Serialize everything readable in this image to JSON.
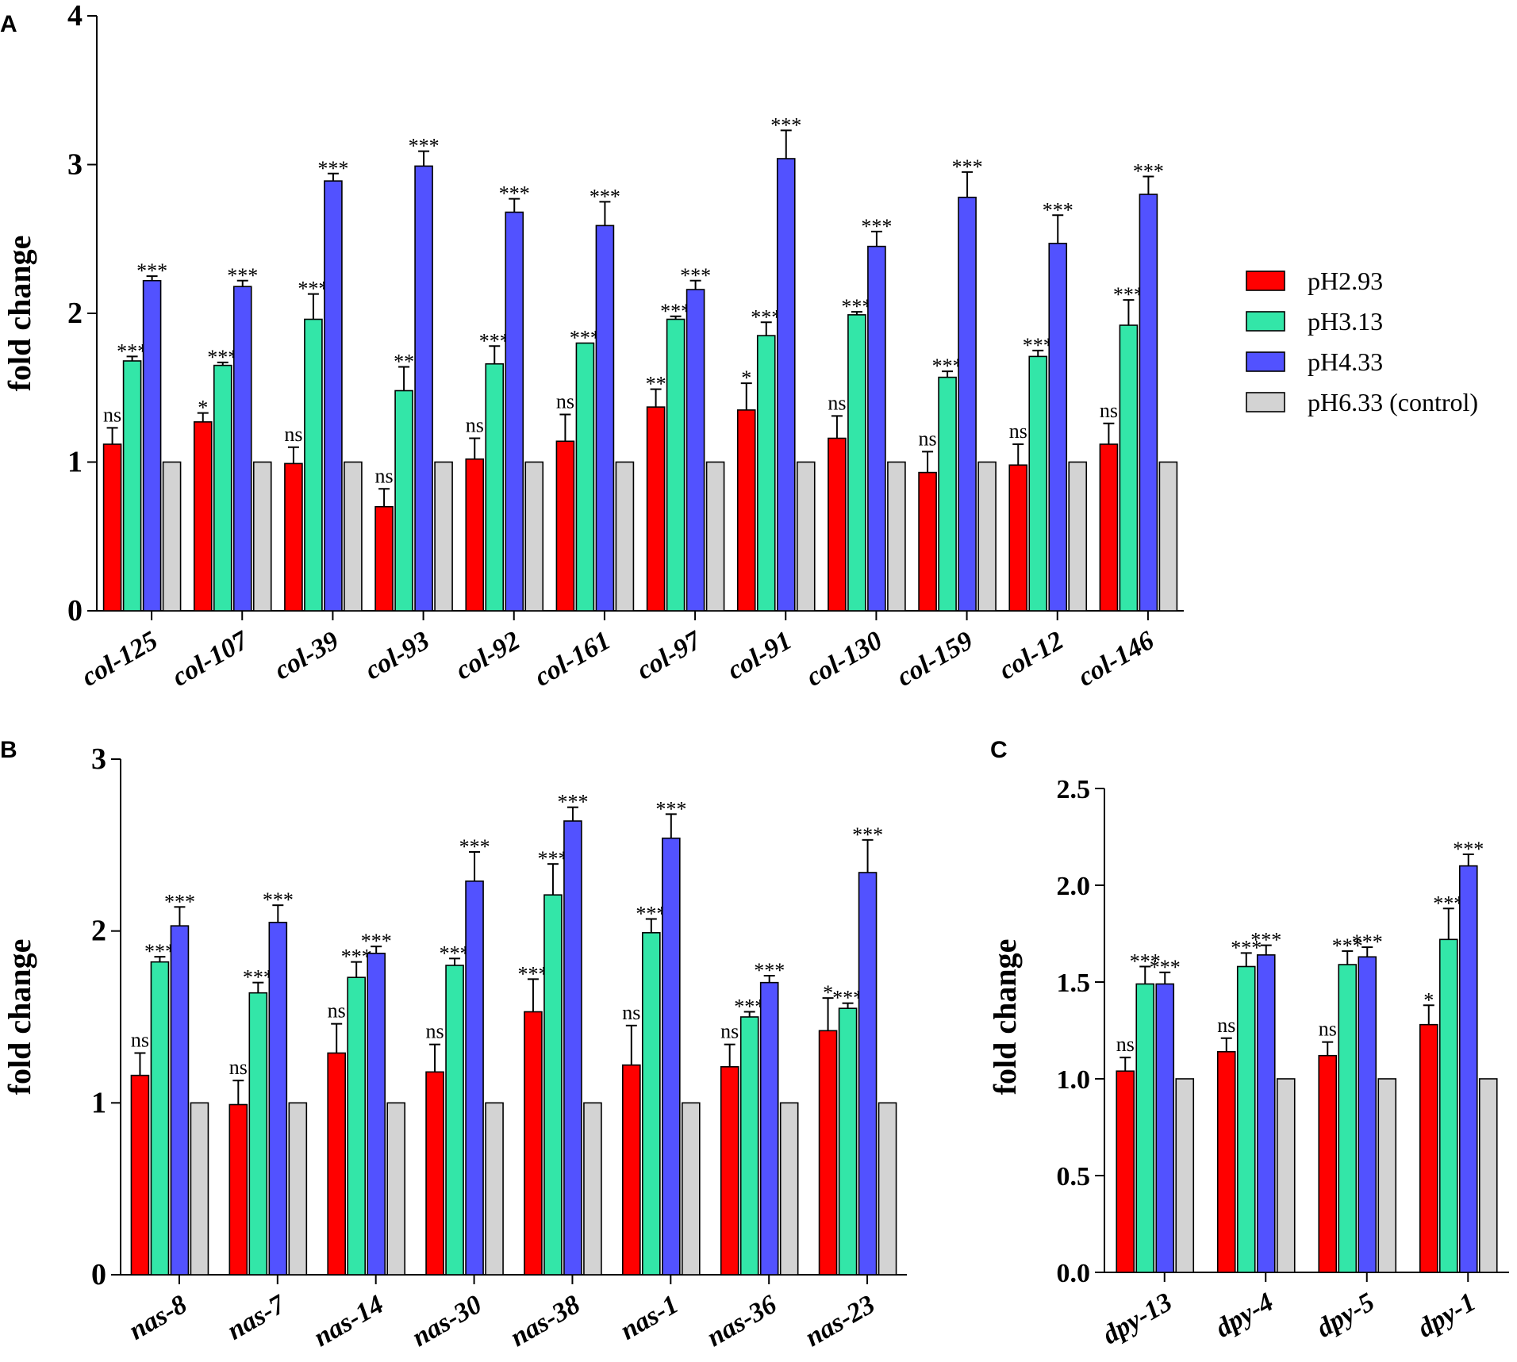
{
  "legend": [
    {
      "label": "pH2.93",
      "color": "#ff0000"
    },
    {
      "label": "pH3.13",
      "color": "#33e6a8"
    },
    {
      "label": "pH4.33",
      "color": "#5252ff"
    },
    {
      "label": "pH6.33 (control)",
      "color": "#d3d3d3"
    }
  ],
  "chart_data": [
    {
      "panel": "A",
      "type": "bar",
      "ylabel": "fold change",
      "ylim": [
        0,
        4
      ],
      "yticks": [
        "0",
        "1",
        "2",
        "3",
        "4"
      ],
      "categories": [
        "col-125",
        "col-107",
        "col-39",
        "col-93",
        "col-92",
        "col-161",
        "col-97",
        "col-91",
        "col-130",
        "col-159",
        "col-12",
        "col-146"
      ],
      "series": [
        {
          "name": "pH2.93",
          "values": [
            1.12,
            1.27,
            0.99,
            0.7,
            1.02,
            1.14,
            1.37,
            1.35,
            1.16,
            0.93,
            0.98,
            1.12
          ],
          "errors": [
            0.11,
            0.06,
            0.11,
            0.12,
            0.14,
            0.18,
            0.12,
            0.18,
            0.15,
            0.14,
            0.14,
            0.14
          ],
          "sig": [
            "ns",
            "*",
            "ns",
            "ns",
            "ns",
            "ns",
            "**",
            "*",
            "ns",
            "ns",
            "ns",
            "ns"
          ]
        },
        {
          "name": "pH3.13",
          "values": [
            1.68,
            1.65,
            1.96,
            1.48,
            1.66,
            1.8,
            1.96,
            1.85,
            1.99,
            1.57,
            1.71,
            1.92
          ],
          "errors": [
            0.03,
            0.02,
            0.17,
            0.16,
            0.12,
            0.0,
            0.02,
            0.09,
            0.02,
            0.04,
            0.04,
            0.17
          ],
          "sig": [
            "***",
            "***",
            "***",
            "**",
            "***",
            "***",
            "***",
            "***",
            "***",
            "***",
            "***",
            "***"
          ]
        },
        {
          "name": "pH4.33",
          "values": [
            2.22,
            2.18,
            2.89,
            2.99,
            2.68,
            2.59,
            2.16,
            3.04,
            2.45,
            2.78,
            2.47,
            2.8
          ],
          "errors": [
            0.03,
            0.04,
            0.05,
            0.1,
            0.09,
            0.16,
            0.06,
            0.19,
            0.1,
            0.17,
            0.19,
            0.12
          ],
          "sig": [
            "***",
            "***",
            "***",
            "***",
            "***",
            "***",
            "***",
            "***",
            "***",
            "***",
            "***",
            "***"
          ]
        },
        {
          "name": "pH6.33 (control)",
          "values": [
            1,
            1,
            1,
            1,
            1,
            1,
            1,
            1,
            1,
            1,
            1,
            1
          ],
          "errors": [
            0,
            0,
            0,
            0,
            0,
            0,
            0,
            0,
            0,
            0,
            0,
            0
          ],
          "sig": [
            "",
            "",
            "",
            "",
            "",
            "",
            "",
            "",
            "",
            "",
            "",
            ""
          ]
        }
      ]
    },
    {
      "panel": "B",
      "type": "bar",
      "ylabel": "fold change",
      "ylim": [
        0,
        3
      ],
      "yticks": [
        "0",
        "1",
        "2",
        "3"
      ],
      "categories": [
        "nas-8",
        "nas-7",
        "nas-14",
        "nas-30",
        "nas-38",
        "nas-1",
        "nas-36",
        "nas-23"
      ],
      "series": [
        {
          "name": "pH2.93",
          "values": [
            1.16,
            0.99,
            1.29,
            1.18,
            1.53,
            1.22,
            1.21,
            1.42
          ],
          "errors": [
            0.13,
            0.14,
            0.17,
            0.16,
            0.19,
            0.23,
            0.13,
            0.19
          ],
          "sig": [
            "ns",
            "ns",
            "ns",
            "ns",
            "***",
            "ns",
            "ns",
            "*"
          ]
        },
        {
          "name": "pH3.13",
          "values": [
            1.82,
            1.64,
            1.73,
            1.8,
            2.21,
            1.99,
            1.5,
            1.55
          ],
          "errors": [
            0.03,
            0.06,
            0.09,
            0.04,
            0.18,
            0.08,
            0.03,
            0.03
          ],
          "sig": [
            "***",
            "***",
            "***",
            "***",
            "***",
            "***",
            "***",
            "***"
          ]
        },
        {
          "name": "pH4.33",
          "values": [
            2.03,
            2.05,
            1.87,
            2.29,
            2.64,
            2.54,
            1.7,
            2.34
          ],
          "errors": [
            0.11,
            0.1,
            0.04,
            0.17,
            0.08,
            0.14,
            0.04,
            0.19
          ],
          "sig": [
            "***",
            "***",
            "***",
            "***",
            "***",
            "***",
            "***",
            "***"
          ]
        },
        {
          "name": "pH6.33 (control)",
          "values": [
            1,
            1,
            1,
            1,
            1,
            1,
            1,
            1
          ],
          "errors": [
            0,
            0,
            0,
            0,
            0,
            0,
            0,
            0
          ],
          "sig": [
            "",
            "",
            "",
            "",
            "",
            "",
            "",
            ""
          ]
        }
      ]
    },
    {
      "panel": "C",
      "type": "bar",
      "ylabel": "fold change",
      "ylim": [
        0,
        2.5
      ],
      "yticks": [
        "0.0",
        "0.5",
        "1.0",
        "1.5",
        "2.0",
        "2.5"
      ],
      "categories": [
        "dpy-13",
        "dpy-4",
        "dpy-5",
        "dpy-1"
      ],
      "series": [
        {
          "name": "pH2.93",
          "values": [
            1.04,
            1.14,
            1.12,
            1.28
          ],
          "errors": [
            0.07,
            0.07,
            0.07,
            0.1
          ],
          "sig": [
            "ns",
            "ns",
            "ns",
            "*"
          ]
        },
        {
          "name": "pH3.13",
          "values": [
            1.49,
            1.58,
            1.59,
            1.72
          ],
          "errors": [
            0.09,
            0.07,
            0.07,
            0.16
          ],
          "sig": [
            "***",
            "***",
            "***",
            "***"
          ]
        },
        {
          "name": "pH4.33",
          "values": [
            1.49,
            1.64,
            1.63,
            2.1
          ],
          "errors": [
            0.06,
            0.05,
            0.05,
            0.06
          ],
          "sig": [
            "***",
            "***",
            "***",
            "***"
          ]
        },
        {
          "name": "pH6.33 (control)",
          "values": [
            1,
            1,
            1,
            1
          ],
          "errors": [
            0,
            0,
            0,
            0
          ],
          "sig": [
            "",
            "",
            "",
            ""
          ]
        }
      ]
    }
  ]
}
